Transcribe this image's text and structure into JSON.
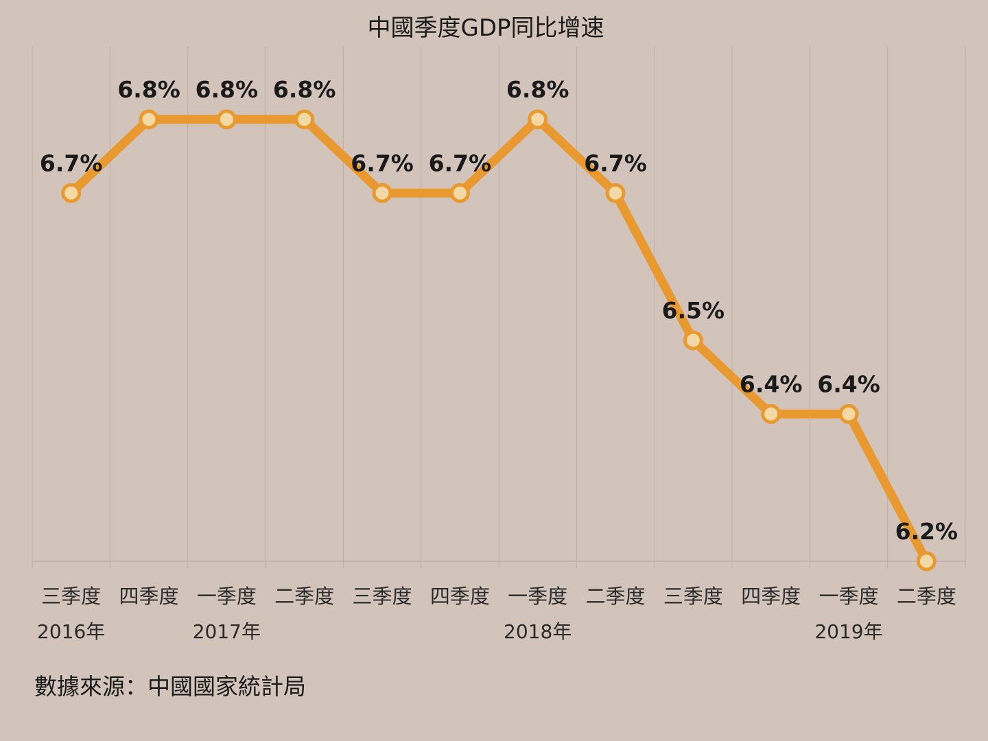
{
  "chart_data": {
    "type": "line",
    "title": "中國季度GDP同比增速",
    "categories": [
      "三季度",
      "四季度",
      "一季度",
      "二季度",
      "三季度",
      "四季度",
      "一季度",
      "二季度",
      "三季度",
      "四季度",
      "一季度",
      "二季度"
    ],
    "year_labels": [
      {
        "index": 0,
        "label": "2016年"
      },
      {
        "index": 2,
        "label": "2017年"
      },
      {
        "index": 6,
        "label": "2018年"
      },
      {
        "index": 10,
        "label": "2019年"
      }
    ],
    "series": [
      {
        "values": [
          6.7,
          6.8,
          6.8,
          6.8,
          6.7,
          6.7,
          6.8,
          6.7,
          6.5,
          6.4,
          6.4,
          6.2
        ],
        "labels": [
          "6.7%",
          "6.8%",
          "6.8%",
          "6.8%",
          "6.7%",
          "6.7%",
          "6.8%",
          "6.7%",
          "6.5%",
          "6.4%",
          "6.4%",
          "6.2%"
        ]
      }
    ],
    "ylim": [
      6.2,
      6.8
    ],
    "grid": "vertical",
    "legend": "none",
    "xlabel": "",
    "ylabel": "",
    "source": "數據來源：中國國家統計局"
  },
  "colors": {
    "background": "#d3c4bb",
    "line": "#e89a30",
    "marker_fill": "#f2d9a6",
    "grid": "#bfb0a8",
    "text": "#1a1a1a"
  }
}
